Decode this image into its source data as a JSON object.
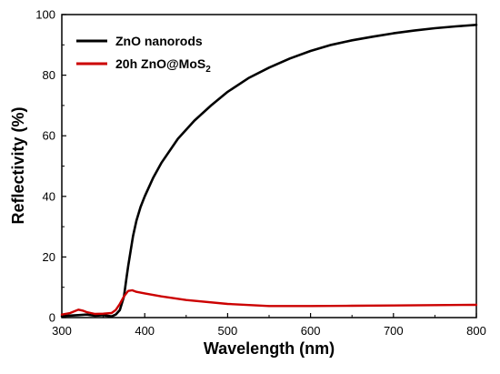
{
  "chart_data": {
    "type": "line",
    "xlabel": "Wavelength (nm)",
    "ylabel": "Reflectivity (%)",
    "xlim": [
      300,
      800
    ],
    "ylim": [
      0,
      100
    ],
    "xticks": [
      300,
      400,
      500,
      600,
      700,
      800
    ],
    "yticks": [
      0,
      20,
      40,
      60,
      80,
      100
    ],
    "grid": false,
    "legend_position": "top-left",
    "series": [
      {
        "name": "ZnO nanorods",
        "color": "#000000",
        "x": [
          300,
          320,
          330,
          340,
          350,
          360,
          365,
          370,
          375,
          378,
          380,
          383,
          386,
          390,
          395,
          400,
          410,
          420,
          440,
          460,
          480,
          500,
          525,
          550,
          575,
          600,
          625,
          650,
          675,
          700,
          725,
          750,
          775,
          800
        ],
        "y": [
          0.5,
          0.8,
          1.0,
          0.6,
          0.8,
          0.4,
          1.0,
          2.5,
          7.0,
          13.0,
          17.0,
          22.0,
          27.0,
          32.0,
          36.5,
          40.0,
          46.0,
          51.0,
          59.0,
          65.0,
          70.0,
          74.5,
          79.0,
          82.5,
          85.5,
          88.0,
          90.0,
          91.5,
          92.7,
          93.8,
          94.7,
          95.5,
          96.1,
          96.6
        ]
      },
      {
        "name": "20h ZnO@MoS",
        "name_subscript": "2",
        "color": "#cc0000",
        "x": [
          300,
          310,
          320,
          325,
          330,
          340,
          350,
          360,
          365,
          370,
          375,
          380,
          385,
          390,
          400,
          420,
          450,
          500,
          550,
          600,
          650,
          700,
          750,
          800
        ],
        "y": [
          1.0,
          1.5,
          2.6,
          2.3,
          1.8,
          1.2,
          1.3,
          1.5,
          2.5,
          4.5,
          7.0,
          8.8,
          9.0,
          8.5,
          8.0,
          7.0,
          5.8,
          4.5,
          3.8,
          3.8,
          3.9,
          4.0,
          4.1,
          4.2
        ]
      }
    ]
  }
}
